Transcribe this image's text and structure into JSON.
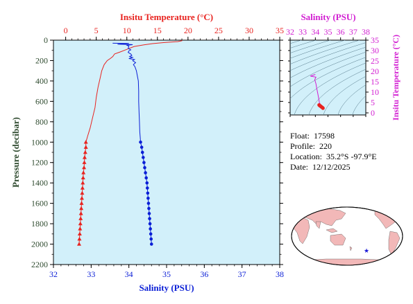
{
  "colors": {
    "temperature": "#e8231f",
    "salinity": "#0a1ed6",
    "salinity_inset": "#d21ed2",
    "plot_bg": "#d2f0fa",
    "axis_dark": "#2e4a2e",
    "contour": "#557a8a",
    "land": "#f2b8b8",
    "ocean": "#ffffff",
    "marker": "#1a1ad8"
  },
  "chart_data": [
    {
      "type": "line",
      "title": "",
      "xlabel_top": "Insitu Temperature (°C)",
      "xlabel_bottom": "Salinity (PSU)",
      "ylabel": "Pressure (decibar)",
      "temp_ticks": [
        "0",
        "5",
        "10",
        "15",
        "20",
        "25",
        "30",
        "35"
      ],
      "sal_ticks": [
        "32",
        "33",
        "34",
        "35",
        "36",
        "37",
        "38"
      ],
      "pressure_ticks": [
        "0",
        "200",
        "400",
        "600",
        "800",
        "1000",
        "1200",
        "1400",
        "1600",
        "1800",
        "2000",
        "2200"
      ],
      "xlim_temperature": [
        -2,
        35
      ],
      "xlim_salinity": [
        32,
        38
      ],
      "ylim_pressure": [
        2200,
        0
      ],
      "grid": false,
      "series": [
        {
          "quantity": "temperature",
          "points": [
            [
              19.0,
              0
            ],
            [
              19.0,
              6
            ],
            [
              18.3,
              14
            ],
            [
              16.0,
              24
            ],
            [
              14.2,
              34
            ],
            [
              12.8,
              46
            ],
            [
              11.2,
              62
            ],
            [
              10.4,
              80
            ],
            [
              9.6,
              100
            ],
            [
              8.8,
              118
            ],
            [
              8.0,
              135
            ],
            [
              7.7,
              160
            ],
            [
              7.3,
              180
            ],
            [
              6.8,
              200
            ],
            [
              6.3,
              240
            ],
            [
              5.9,
              300
            ],
            [
              5.6,
              380
            ],
            [
              5.3,
              460
            ],
            [
              5.0,
              560
            ],
            [
              4.8,
              660
            ],
            [
              4.4,
              760
            ],
            [
              4.0,
              860
            ],
            [
              3.6,
              940
            ],
            [
              3.4,
              980
            ],
            [
              3.3,
              1000
            ],
            [
              3.3,
              1050
            ],
            [
              3.2,
              1100
            ],
            [
              3.1,
              1150
            ],
            [
              3.05,
              1200
            ],
            [
              3.0,
              1250
            ],
            [
              2.9,
              1300
            ],
            [
              2.85,
              1350
            ],
            [
              2.8,
              1400
            ],
            [
              2.75,
              1450
            ],
            [
              2.7,
              1500
            ],
            [
              2.65,
              1550
            ],
            [
              2.6,
              1600
            ],
            [
              2.55,
              1650
            ],
            [
              2.5,
              1700
            ],
            [
              2.45,
              1750
            ],
            [
              2.4,
              1800
            ],
            [
              2.35,
              1850
            ],
            [
              2.3,
              1900
            ],
            [
              2.25,
              1950
            ],
            [
              2.2,
              2000
            ]
          ],
          "markers_from_pressure": 1000,
          "marker": "triangle"
        },
        {
          "quantity": "salinity",
          "points": [
            [
              33.57,
              30
            ],
            [
              34.0,
              32
            ],
            [
              33.9,
              36
            ],
            [
              33.7,
              40
            ],
            [
              34.05,
              42
            ],
            [
              34.1,
              44
            ],
            [
              33.95,
              50
            ],
            [
              34.0,
              60
            ],
            [
              33.98,
              80
            ],
            [
              34.05,
              95
            ],
            [
              34.0,
              105
            ],
            [
              33.98,
              120
            ],
            [
              34.05,
              135
            ],
            [
              34.08,
              150
            ],
            [
              34.02,
              160
            ],
            [
              34.1,
              170
            ],
            [
              34.0,
              180
            ],
            [
              34.15,
              190
            ],
            [
              34.1,
              200
            ],
            [
              34.18,
              220
            ],
            [
              34.12,
              240
            ],
            [
              34.16,
              260
            ],
            [
              34.2,
              300
            ],
            [
              34.22,
              340
            ],
            [
              34.25,
              400
            ],
            [
              34.26,
              500
            ],
            [
              34.26,
              600
            ],
            [
              34.27,
              700
            ],
            [
              34.28,
              800
            ],
            [
              34.29,
              900
            ],
            [
              34.3,
              950
            ],
            [
              34.31,
              1000
            ],
            [
              34.34,
              1050
            ],
            [
              34.36,
              1100
            ],
            [
              34.38,
              1150
            ],
            [
              34.4,
              1200
            ],
            [
              34.42,
              1250
            ],
            [
              34.44,
              1300
            ],
            [
              34.46,
              1350
            ],
            [
              34.48,
              1400
            ],
            [
              34.49,
              1450
            ],
            [
              34.5,
              1500
            ],
            [
              34.51,
              1550
            ],
            [
              34.52,
              1600
            ],
            [
              34.53,
              1650
            ],
            [
              34.54,
              1700
            ],
            [
              34.55,
              1750
            ],
            [
              34.56,
              1800
            ],
            [
              34.57,
              1850
            ],
            [
              34.58,
              1900
            ],
            [
              34.59,
              1950
            ],
            [
              34.6,
              2000
            ]
          ],
          "markers_from_pressure": 1000,
          "marker": "circle"
        }
      ]
    },
    {
      "type": "scatter",
      "title": "",
      "xlabel": "Salinity (PSU)",
      "ylabel": "Insitu Temperature (°C)",
      "x_ticks": [
        "32",
        "33",
        "34",
        "35",
        "36",
        "37",
        "38"
      ],
      "y_ticks": [
        "0",
        "5",
        "10",
        "15",
        "20",
        "25",
        "30",
        "35"
      ],
      "xlim": [
        32,
        38
      ],
      "ylim": [
        -1,
        35
      ],
      "points": [
        [
          34.0,
          18.5
        ],
        [
          33.6,
          17.7
        ],
        [
          34.05,
          17.2
        ],
        [
          33.95,
          16.0
        ],
        [
          34.05,
          14.0
        ],
        [
          34.1,
          12.0
        ],
        [
          34.2,
          9.0
        ],
        [
          34.28,
          6.5
        ],
        [
          34.32,
          5.0
        ],
        [
          34.4,
          4.0
        ],
        [
          34.5,
          3.2
        ],
        [
          34.6,
          2.2
        ]
      ],
      "dense_cluster": [
        [
          34.3,
          3.8
        ],
        [
          34.35,
          3.5
        ],
        [
          34.42,
          3.2
        ],
        [
          34.48,
          2.9
        ],
        [
          34.55,
          2.6
        ],
        [
          34.6,
          2.3
        ]
      ]
    }
  ],
  "info": {
    "float_label": "Float:",
    "float_value": "17598",
    "profile_label": "Profile:",
    "profile_value": "220",
    "location_label": "Location:",
    "location_value": "35.2°S  -97.9°E",
    "date_label": "Date:",
    "date_value": "12/12/2025"
  },
  "map": {
    "marker_icon": "star-icon",
    "float_lat": -35.2,
    "float_lon": -97.9
  }
}
